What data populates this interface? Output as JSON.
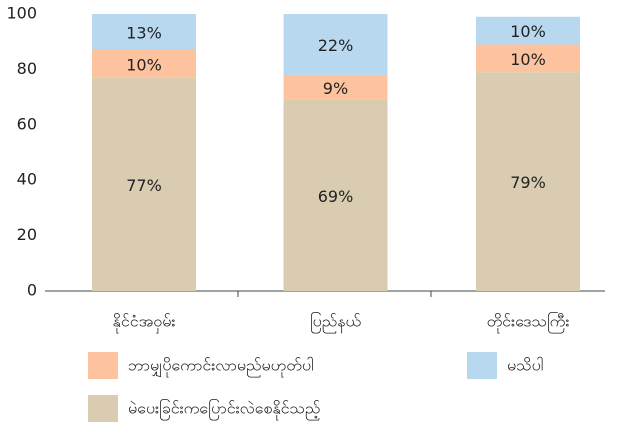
{
  "chart_data": {
    "type": "stacked_bar",
    "categories": [
      "နိုင်ငံအဝှမ်း",
      "ပြည်နယ်",
      "တိုင်းဒေသကြီး"
    ],
    "series": [
      {
        "name": "မဲပေးခြင်းကပြောင်းလဲစေနိုင်သည့်",
        "color": "#d9ccb0",
        "values": [
          77,
          69,
          79
        ],
        "value_labels": [
          "77%",
          "69%",
          "79%"
        ]
      },
      {
        "name": "ဘာမျှပိုကောင်းလာမည်မဟုတ်ပါ",
        "color": "#fcc39e",
        "values": [
          10,
          9,
          10
        ],
        "value_labels": [
          "10%",
          "9%",
          "10%"
        ]
      },
      {
        "name": "မသိပါ",
        "color": "#b8d8f0",
        "values": [
          13,
          22,
          10
        ],
        "value_labels": [
          "13%",
          "22%",
          "10%"
        ]
      }
    ],
    "ylim": [
      0,
      100
    ],
    "yticks": [
      0,
      20,
      40,
      60,
      80,
      100
    ]
  }
}
